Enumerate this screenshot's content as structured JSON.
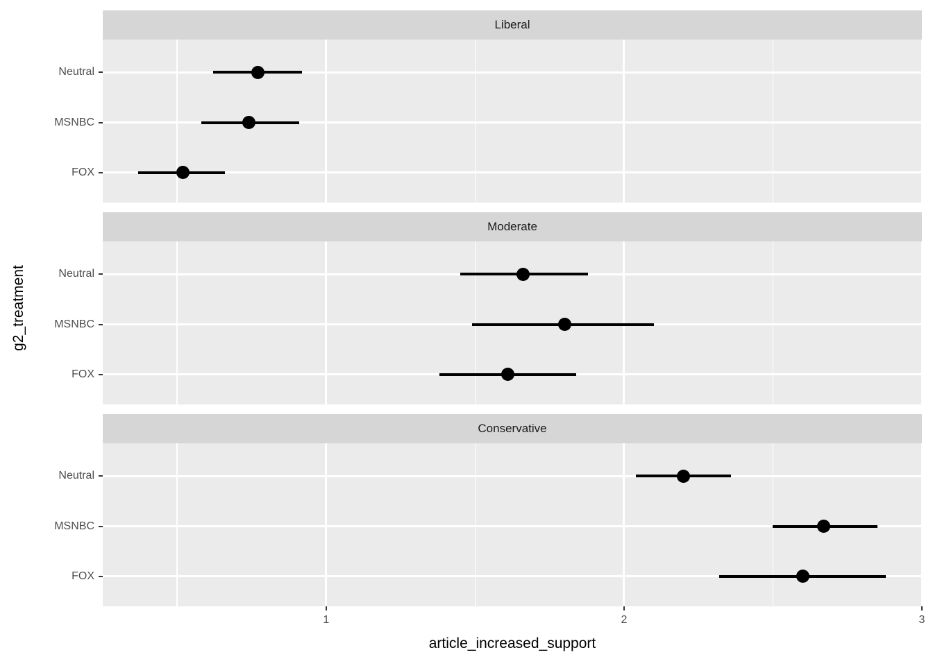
{
  "chart_data": {
    "type": "pointrange",
    "title": "",
    "xlabel": "article_increased_support",
    "ylabel": "g2_treatment",
    "x_domain": [
      0.25,
      3.0
    ],
    "x_ticks": [
      1,
      2,
      3
    ],
    "x_tick_labels": [
      "1",
      "2",
      "3"
    ],
    "x_minor_ticks": [
      0.5,
      1.5,
      2.5
    ],
    "categories": [
      "Neutral",
      "MSNBC",
      "FOX"
    ],
    "facets": [
      {
        "label": "Liberal",
        "points": [
          {
            "category": "Neutral",
            "estimate": 0.77,
            "ci_low": 0.62,
            "ci_high": 0.92
          },
          {
            "category": "MSNBC",
            "estimate": 0.74,
            "ci_low": 0.58,
            "ci_high": 0.91
          },
          {
            "category": "FOX",
            "estimate": 0.52,
            "ci_low": 0.37,
            "ci_high": 0.66
          }
        ]
      },
      {
        "label": "Moderate",
        "points": [
          {
            "category": "Neutral",
            "estimate": 1.66,
            "ci_low": 1.45,
            "ci_high": 1.88
          },
          {
            "category": "MSNBC",
            "estimate": 1.8,
            "ci_low": 1.49,
            "ci_high": 2.1
          },
          {
            "category": "FOX",
            "estimate": 1.61,
            "ci_low": 1.38,
            "ci_high": 1.84
          }
        ]
      },
      {
        "label": "Conservative",
        "points": [
          {
            "category": "Neutral",
            "estimate": 2.2,
            "ci_low": 2.04,
            "ci_high": 2.36
          },
          {
            "category": "MSNBC",
            "estimate": 2.67,
            "ci_low": 2.5,
            "ci_high": 2.85
          },
          {
            "category": "FOX",
            "estimate": 2.6,
            "ci_low": 2.32,
            "ci_high": 2.88
          }
        ]
      }
    ],
    "legend": null,
    "grid": "major-and-minor-x, major-y",
    "colors": {
      "panel_bg": "#EBEBEB",
      "strip_bg": "#D6D6D6",
      "grid": "#FFFFFF",
      "point": "#000000",
      "tick_mark": "#333333",
      "tick_label": "#4D4D4D",
      "strip_text": "#1A1A1A",
      "axis_title": "#000000"
    }
  }
}
